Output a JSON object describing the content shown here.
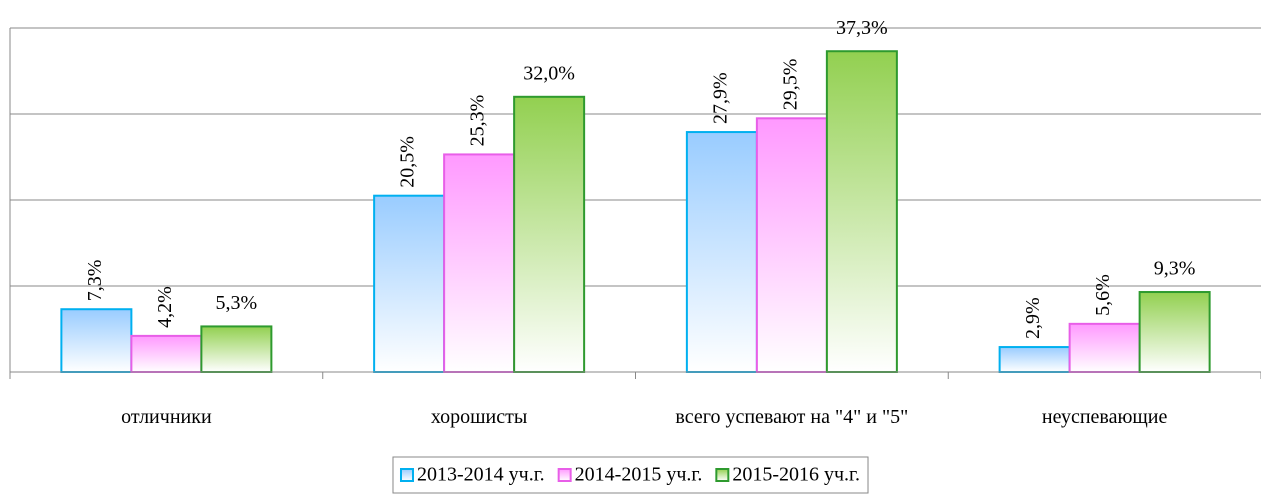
{
  "chart_data": {
    "type": "bar",
    "categories": [
      "отличники",
      "хорошисты",
      "всего успевают на \"4\" и \"5\"",
      "неуспевающие"
    ],
    "series": [
      {
        "name": "2013-2014 уч.г.",
        "color": "#99ccff",
        "values": [
          7.3,
          20.5,
          27.9,
          2.9
        ],
        "value_labels": [
          "7,3%",
          "20,5%",
          "27,9%",
          "2,9%"
        ]
      },
      {
        "name": "2014-2015 уч.г.",
        "color": "#ff99ff",
        "values": [
          4.2,
          25.3,
          29.5,
          5.6
        ],
        "value_labels": [
          "4,2%",
          "25,3%",
          "29,5%",
          "5,6%"
        ]
      },
      {
        "name": "2015-2016 уч.г.",
        "color": "#92d050",
        "values": [
          5.3,
          32.0,
          37.3,
          9.3
        ],
        "value_labels": [
          "5,3%",
          "32,0%",
          "37,3%",
          "9,3%"
        ]
      }
    ],
    "ylim": [
      0,
      40
    ],
    "yticks": [
      0,
      10,
      20,
      30,
      40
    ],
    "grid": true,
    "legend": "bottom"
  }
}
